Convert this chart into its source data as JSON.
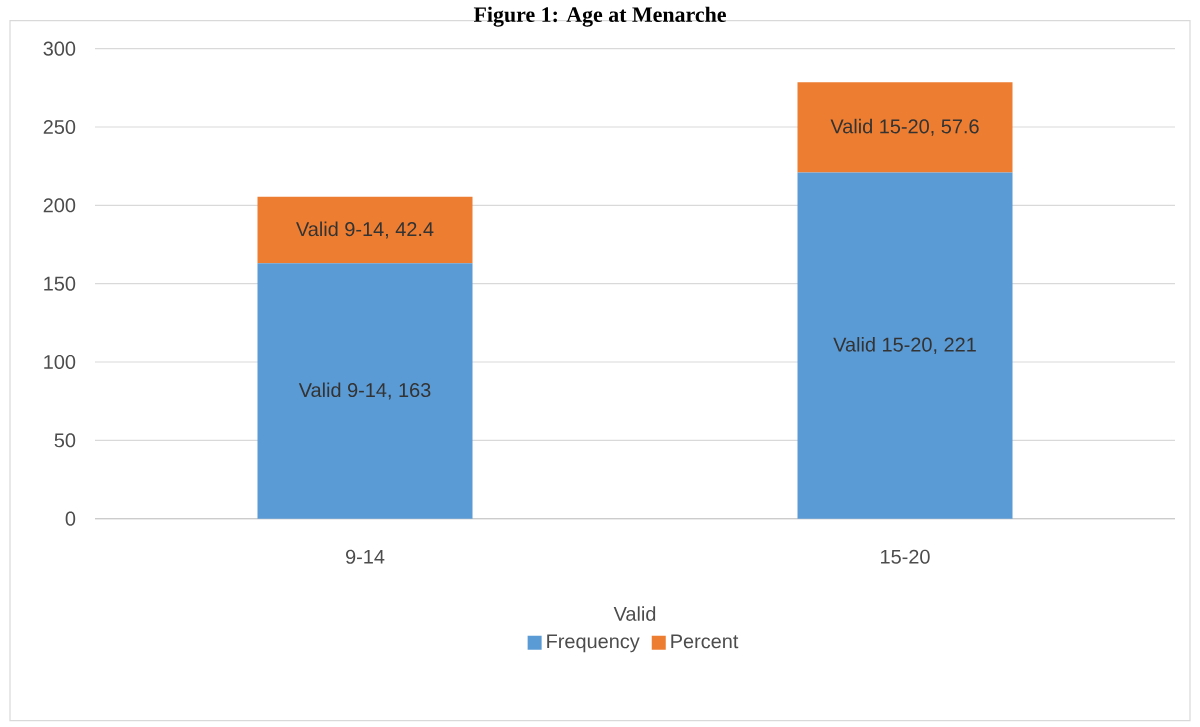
{
  "chart_data": {
    "type": "bar",
    "stacked": true,
    "title": "Figure 1: Age at Menarche",
    "xlabel": "Valid",
    "categories": [
      "9-14",
      "15-20"
    ],
    "series": [
      {
        "name": "Frequency",
        "color": "#5b9bd5",
        "values": [
          163,
          221
        ],
        "value_labels": [
          "Valid 9-14, 163",
          "Valid 15-20, 221"
        ]
      },
      {
        "name": "Percent",
        "color": "#ed7d31",
        "values": [
          42.4,
          57.6
        ],
        "value_labels": [
          "Valid 9-14, 42.4",
          "Valid 15-20, 57.6"
        ]
      }
    ],
    "ylim": [
      0,
      300
    ],
    "yticks": [
      0,
      50,
      100,
      150,
      200,
      250,
      300
    ],
    "grid": "y",
    "legend": "bottom"
  }
}
